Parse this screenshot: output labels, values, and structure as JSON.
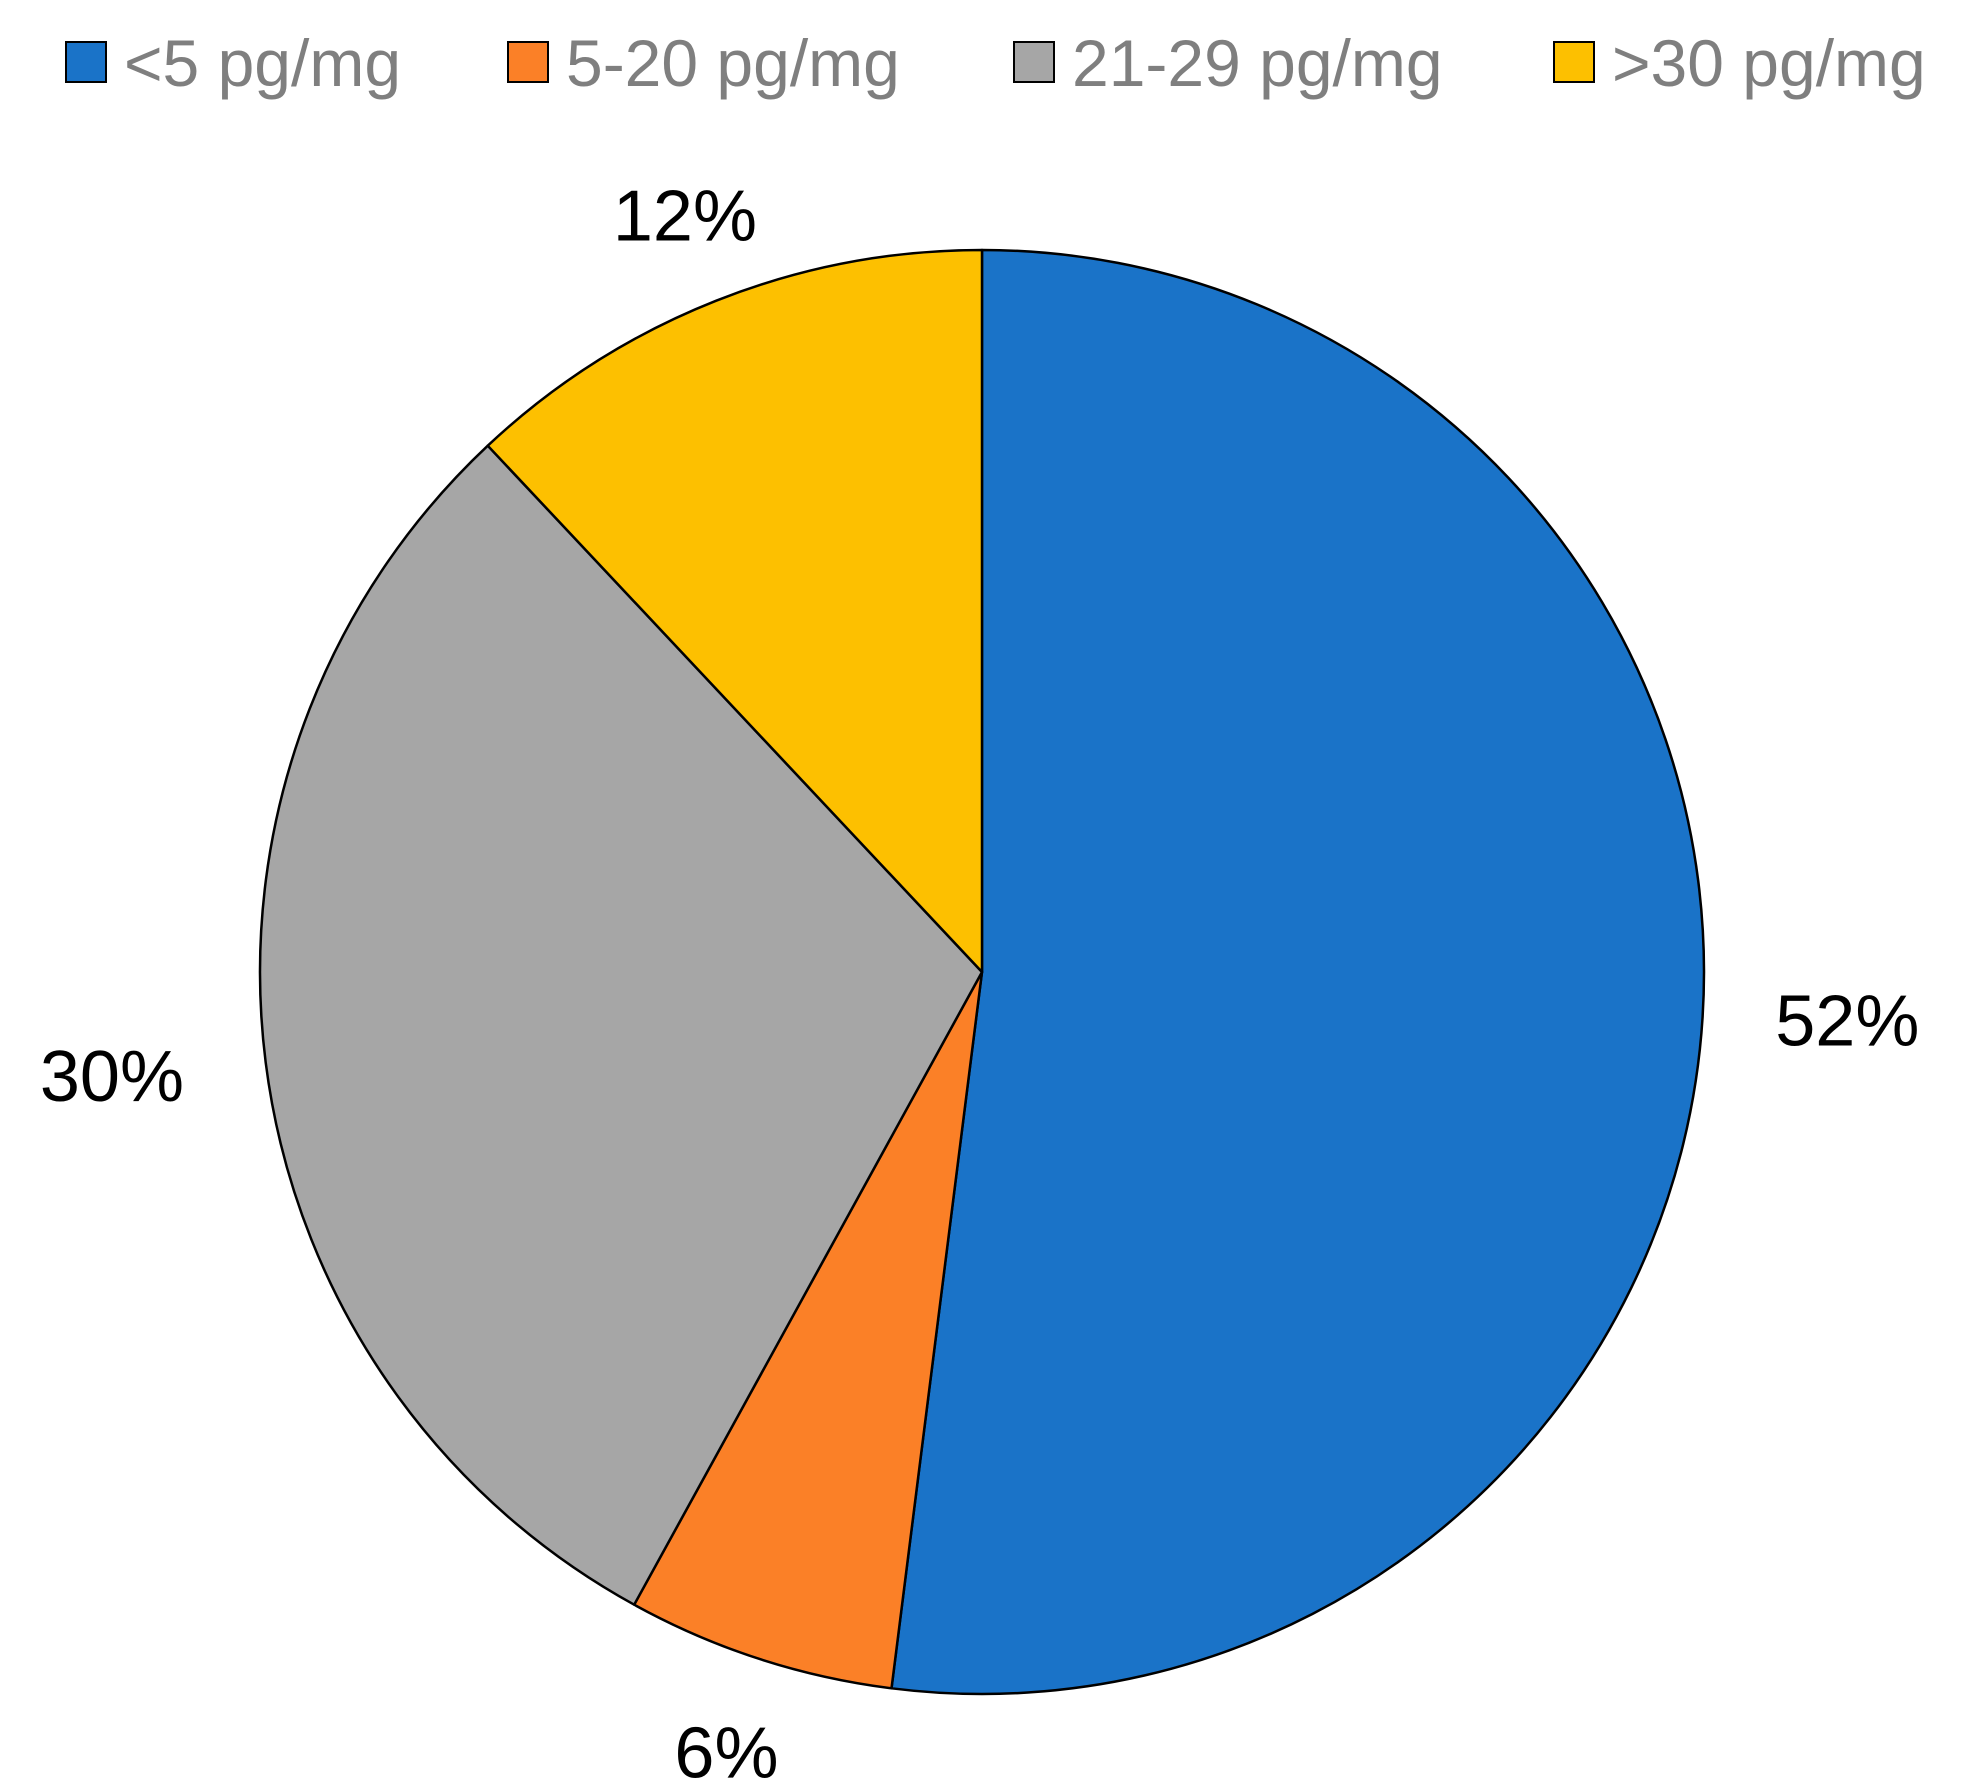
{
  "chart_data": {
    "type": "pie",
    "series": [
      {
        "name": "<5 pg/mg",
        "value": 52,
        "label": "52%",
        "color": "#1a73c8"
      },
      {
        "name": "5-20 pg/mg",
        "value": 6,
        "label": "6%",
        "color": "#fb8027"
      },
      {
        "name": "21-29 pg/mg",
        "value": 30,
        "label": "30%",
        "color": "#a6a6a6"
      },
      {
        "name": ">30 pg/mg",
        "value": 12,
        "label": "12%",
        "color": "#fdc000"
      }
    ],
    "legend_position": "top",
    "start_angle": "12 o'clock",
    "direction": "clockwise"
  }
}
